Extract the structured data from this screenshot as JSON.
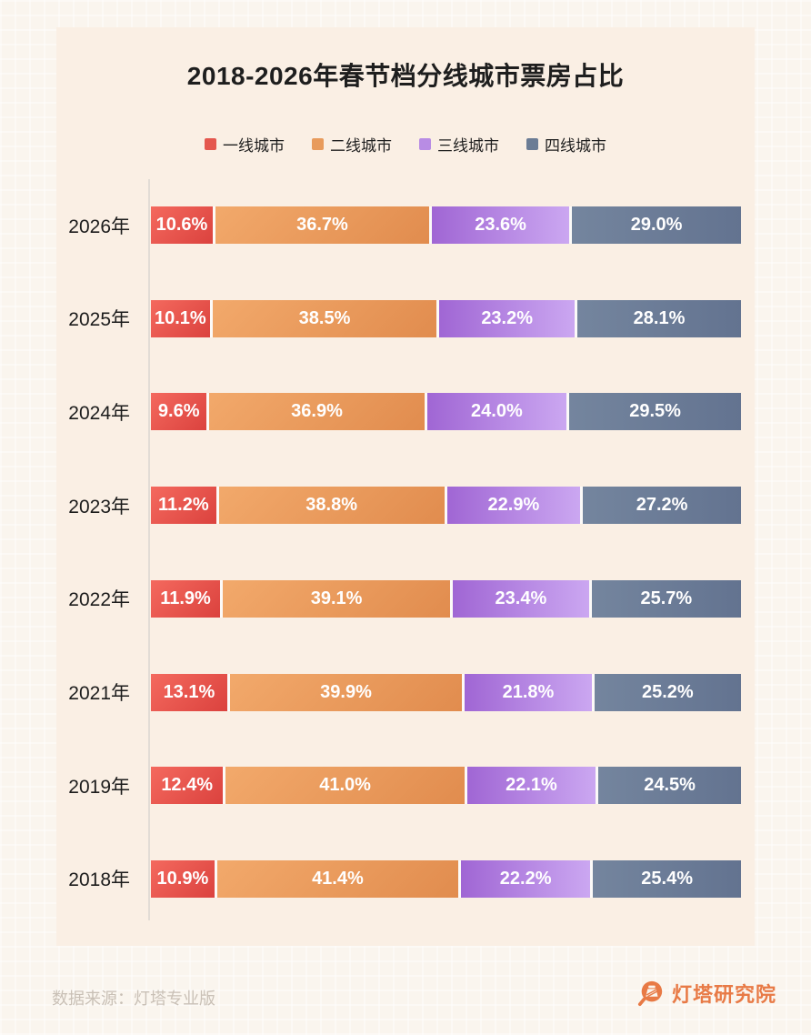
{
  "title": "2018-2026年春节档分线城市票房占比",
  "legend": [
    {
      "label": "一线城市",
      "color": "#E4574E"
    },
    {
      "label": "二线城市",
      "color": "#E89B5C"
    },
    {
      "label": "三线城市",
      "color": "#B88CE4"
    },
    {
      "label": "四线城市",
      "color": "#6B7C95"
    }
  ],
  "chart_data": {
    "type": "bar",
    "stacked": true,
    "orientation": "horizontal",
    "title": "2018-2026年春节档分线城市票房占比",
    "categories": [
      "2026年",
      "2025年",
      "2024年",
      "2023年",
      "2022年",
      "2021年",
      "2019年",
      "2018年"
    ],
    "series": [
      {
        "name": "一线城市",
        "color": "#E4574E",
        "values": [
          10.6,
          10.1,
          9.6,
          11.2,
          11.9,
          13.1,
          12.4,
          10.9
        ]
      },
      {
        "name": "二线城市",
        "color": "#E89B5C",
        "values": [
          36.7,
          38.5,
          36.9,
          38.8,
          39.1,
          39.9,
          41.0,
          41.4
        ]
      },
      {
        "name": "三线城市",
        "color": "#B88CE4",
        "values": [
          23.6,
          23.2,
          24.0,
          22.9,
          23.4,
          21.8,
          22.1,
          22.2
        ]
      },
      {
        "name": "四线城市",
        "color": "#6B7C95",
        "values": [
          29.0,
          28.1,
          29.5,
          27.2,
          25.7,
          25.2,
          24.5,
          25.4
        ]
      }
    ],
    "value_suffix": "%",
    "xlim": [
      0,
      100
    ],
    "grid": false,
    "legend_position": "top"
  },
  "footer": {
    "source": "数据来源：灯塔专业版",
    "brand": "灯塔研究院"
  }
}
